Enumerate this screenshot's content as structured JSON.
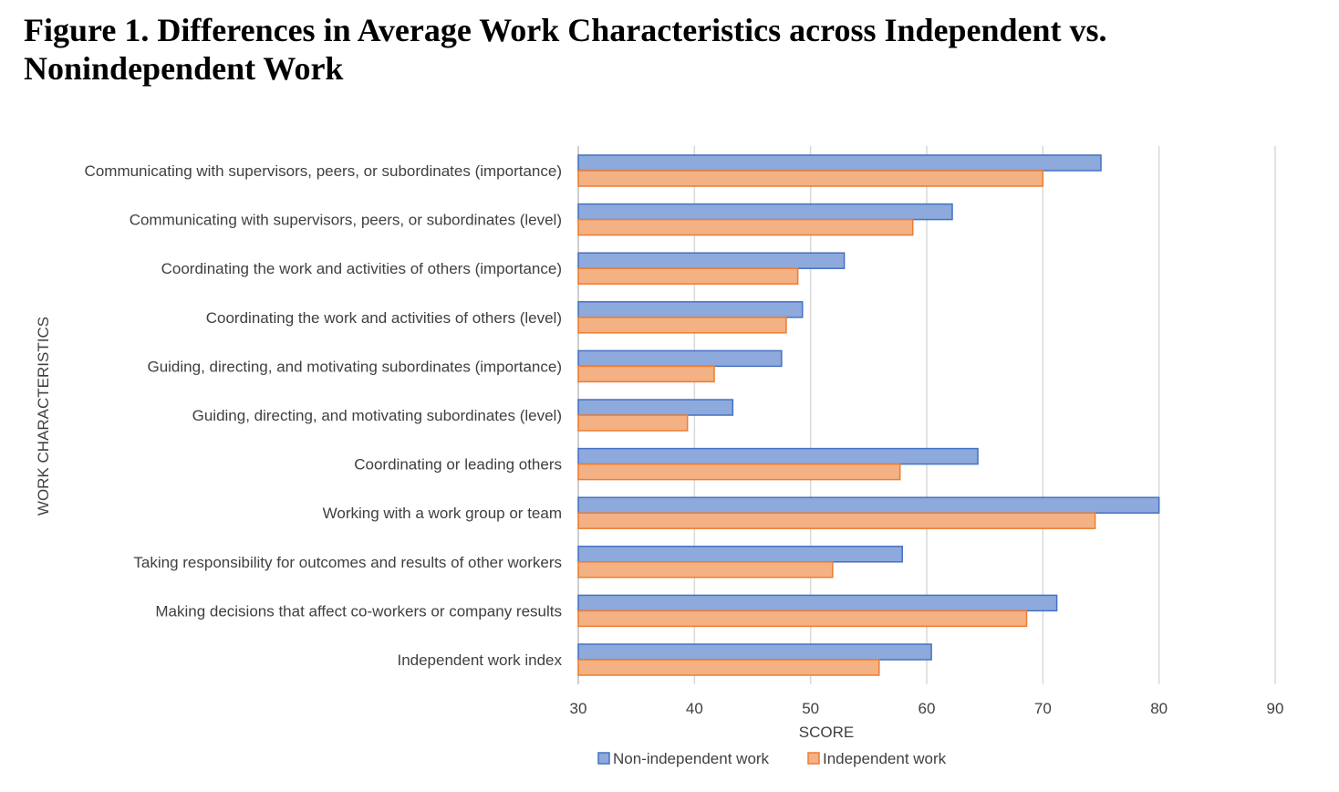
{
  "figure_title": "Figure 1. Differences in Average Work Characteristics across Independent vs. Nonindependent Work",
  "chart_data": {
    "type": "bar",
    "orientation": "horizontal",
    "title": "Figure 1. Differences in Average Work Characteristics across Independent vs. Nonindependent Work",
    "xlabel": "SCORE",
    "ylabel": "WORK CHARACTERISTICS",
    "xlim": [
      30,
      90
    ],
    "xticks": [
      30,
      40,
      50,
      60,
      70,
      80,
      90
    ],
    "grid": true,
    "legend_position": "bottom",
    "categories": [
      "Communicating with supervisors, peers, or subordinates (importance)",
      "Communicating with supervisors, peers, or subordinates (level)",
      "Coordinating the work and activities of others (importance)",
      "Coordinating the work and activities of others (level)",
      "Guiding, directing, and motivating subordinates (importance)",
      "Guiding, directing, and motivating subordinates (level)",
      "Coordinating or leading others",
      "Working with a work group or team",
      "Taking responsibility for outcomes and results of other workers",
      "Making decisions that affect co-workers or company results",
      "Independent work index"
    ],
    "series": [
      {
        "name": "Non-independent work",
        "color": "#8EA9DB",
        "edge_color": "#4472C4",
        "values": [
          75.0,
          62.2,
          52.9,
          49.3,
          47.5,
          43.3,
          64.4,
          80.0,
          57.9,
          71.2,
          60.4
        ]
      },
      {
        "name": "Independent work",
        "color": "#F4B183",
        "edge_color": "#ED7D31",
        "values": [
          70.0,
          58.8,
          48.9,
          47.9,
          41.7,
          39.4,
          57.7,
          74.5,
          51.9,
          68.6,
          55.9
        ]
      }
    ]
  }
}
